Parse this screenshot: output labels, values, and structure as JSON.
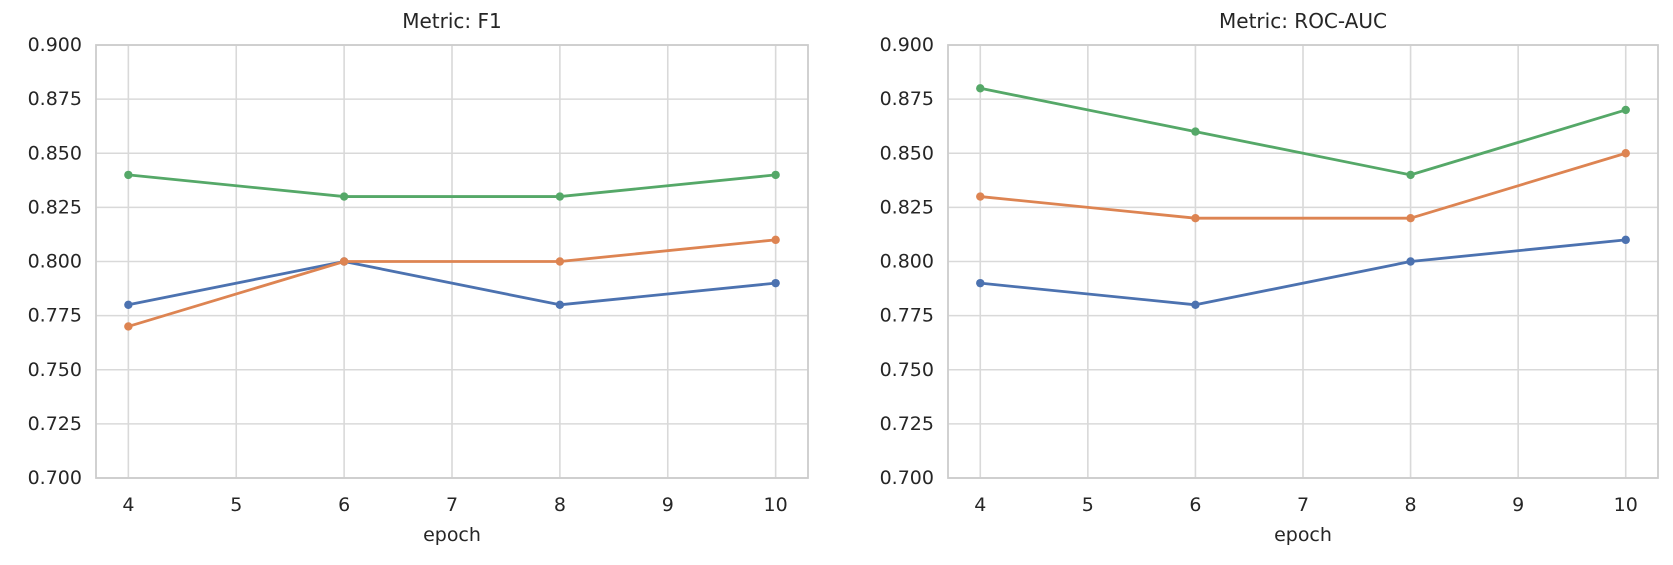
{
  "colors": {
    "background": "#ffffff",
    "grid": "#d9d9d9",
    "spine": "#cccccc",
    "text": "#262626"
  },
  "chart_data": [
    {
      "type": "line",
      "title": "Metric: F1",
      "xlabel": "epoch",
      "ylabel": "",
      "x": [
        4,
        6,
        8,
        10
      ],
      "xlim": [
        3.7,
        10.3
      ],
      "ylim": [
        0.7,
        0.9
      ],
      "xticks": [
        4,
        5,
        6,
        7,
        8,
        9,
        10
      ],
      "xtick_labels": [
        "4",
        "5",
        "6",
        "7",
        "8",
        "9",
        "10"
      ],
      "yticks": [
        0.7,
        0.725,
        0.75,
        0.775,
        0.8,
        0.825,
        0.85,
        0.875,
        0.9
      ],
      "ytick_labels": [
        "0.700",
        "0.725",
        "0.750",
        "0.775",
        "0.800",
        "0.825",
        "0.850",
        "0.875",
        "0.900"
      ],
      "grid": true,
      "legend": "none",
      "series": [
        {
          "name": "series-blue",
          "color": "#4C72B0",
          "values": [
            0.78,
            0.8,
            0.78,
            0.79
          ]
        },
        {
          "name": "series-orange",
          "color": "#DD8452",
          "values": [
            0.77,
            0.8,
            0.8,
            0.81
          ]
        },
        {
          "name": "series-green",
          "color": "#55A868",
          "values": [
            0.84,
            0.83,
            0.83,
            0.84
          ]
        }
      ]
    },
    {
      "type": "line",
      "title": "Metric: ROC-AUC",
      "xlabel": "epoch",
      "ylabel": "",
      "x": [
        4,
        6,
        8,
        10
      ],
      "xlim": [
        3.7,
        10.3
      ],
      "ylim": [
        0.7,
        0.9
      ],
      "xticks": [
        4,
        5,
        6,
        7,
        8,
        9,
        10
      ],
      "xtick_labels": [
        "4",
        "5",
        "6",
        "7",
        "8",
        "9",
        "10"
      ],
      "yticks": [
        0.7,
        0.725,
        0.75,
        0.775,
        0.8,
        0.825,
        0.85,
        0.875,
        0.9
      ],
      "ytick_labels": [
        "0.700",
        "0.725",
        "0.750",
        "0.775",
        "0.800",
        "0.825",
        "0.850",
        "0.875",
        "0.900"
      ],
      "grid": true,
      "legend": "none",
      "series": [
        {
          "name": "series-blue",
          "color": "#4C72B0",
          "values": [
            0.79,
            0.78,
            0.8,
            0.81
          ]
        },
        {
          "name": "series-orange",
          "color": "#DD8452",
          "values": [
            0.83,
            0.82,
            0.82,
            0.85
          ]
        },
        {
          "name": "series-green",
          "color": "#55A868",
          "values": [
            0.88,
            0.86,
            0.84,
            0.87
          ]
        }
      ]
    }
  ]
}
